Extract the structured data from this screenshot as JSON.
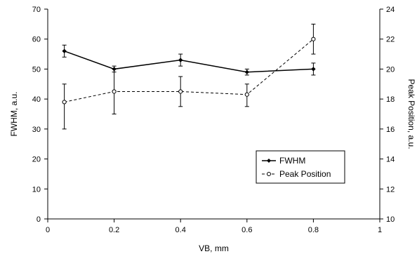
{
  "chart_data": {
    "type": "line",
    "xlabel": "VB, mm",
    "ylabel_left": "FWHM, a.u.",
    "ylabel_right": "Peak Position, a.u.",
    "xlim": [
      0,
      1
    ],
    "ylim_left": [
      0,
      70
    ],
    "ylim_right": [
      10,
      24
    ],
    "x_ticks": [
      "0",
      "0.2",
      "0.4",
      "0.6",
      "0.8",
      "1"
    ],
    "y_left_ticks": [
      "0",
      "10",
      "20",
      "30",
      "40",
      "50",
      "60",
      "70"
    ],
    "y_right_ticks": [
      "10",
      "12",
      "14",
      "16",
      "18",
      "20",
      "22",
      "24"
    ],
    "grid": false,
    "legend_position": "bottom-right",
    "series": [
      {
        "name": "FWHM",
        "axis": "left",
        "style": "solid",
        "marker": "filled-diamond",
        "color": "#000000",
        "x": [
          0.05,
          0.2,
          0.4,
          0.6,
          0.8
        ],
        "y": [
          56,
          50,
          53,
          49,
          50
        ],
        "err_low": [
          54,
          49,
          51,
          48,
          48
        ],
        "err_high": [
          58,
          51,
          55,
          50,
          52
        ]
      },
      {
        "name": "Peak Position",
        "axis": "right",
        "style": "dashed",
        "marker": "open-circle",
        "color": "#000000",
        "x": [
          0.05,
          0.2,
          0.4,
          0.6,
          0.8
        ],
        "y": [
          17.8,
          18.5,
          18.5,
          18.3,
          22.0
        ],
        "err_low": [
          16.0,
          17.0,
          17.5,
          17.5,
          21.0
        ],
        "err_high": [
          19.0,
          20.0,
          19.5,
          19.0,
          23.0
        ]
      }
    ]
  }
}
